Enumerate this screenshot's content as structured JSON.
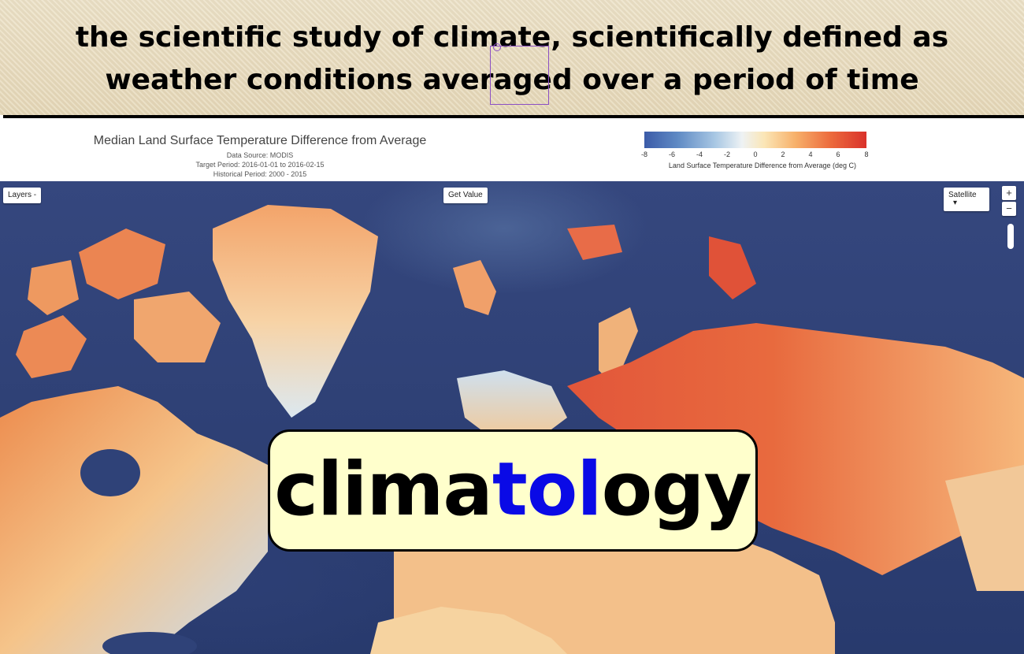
{
  "banner": {
    "line1": "the scientific study of climate, scientifically defined as",
    "line2": "weather conditions averaged over a period of time"
  },
  "map_header": {
    "title": "Median Land Surface Temperature Difference from Average",
    "data_source": "Data Source: MODIS",
    "target_period": "Target Period: 2016-01-01 to 2016-02-15",
    "historical_period": "Historical Period: 2000 - 2015",
    "colorbar": {
      "ticks": [
        "-8",
        "-6",
        "-4",
        "-2",
        "0",
        "2",
        "4",
        "6",
        "8"
      ],
      "label": "Land Surface Temperature Difference from Average (deg C)",
      "colors": [
        "#3b5ba8",
        "#a9c8e4",
        "#eef2f4",
        "#f7b06a",
        "#d9312a"
      ]
    }
  },
  "map_controls": {
    "layers": "Layers -",
    "get_value": "Get Value",
    "map_type": "Satellite",
    "map_type_caret": "▾",
    "zoom_in": "+",
    "zoom_out": "−"
  },
  "term": {
    "part1": "clima",
    "part2": "tol",
    "part3": "ogy",
    "highlight_color": "#0a0ae6"
  }
}
